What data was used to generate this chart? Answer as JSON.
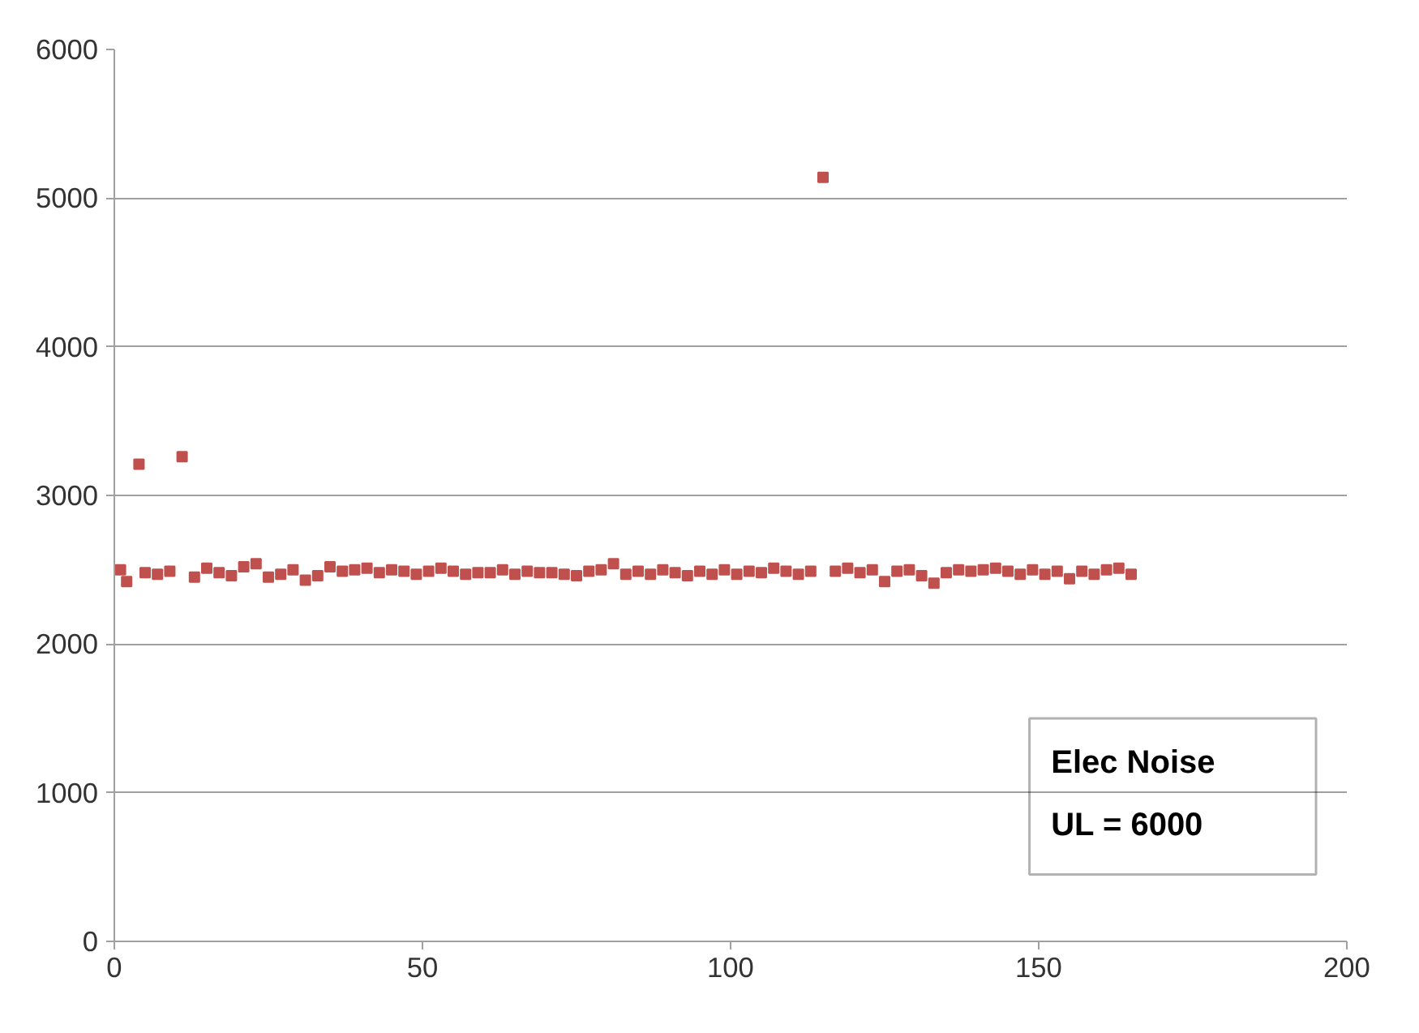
{
  "chart_data": {
    "type": "scatter",
    "marker": "square",
    "grid": "y",
    "xlim": [
      0,
      200
    ],
    "xticks": [
      0,
      50,
      100,
      150,
      200
    ],
    "ylim": [
      0,
      6000
    ],
    "yticks": [
      0,
      1000,
      2000,
      3000,
      4000,
      5000,
      6000
    ],
    "annotations": [
      "Elec Noise",
      "UL = 6000"
    ],
    "series": [
      {
        "color": "#c0504d",
        "x": [
          1,
          2,
          4,
          5,
          7,
          9,
          11,
          13,
          15,
          17,
          19,
          21,
          23,
          25,
          27,
          29,
          31,
          33,
          35,
          37,
          39,
          41,
          43,
          45,
          47,
          49,
          51,
          53,
          55,
          57,
          59,
          61,
          63,
          65,
          67,
          69,
          71,
          73,
          75,
          77,
          79,
          81,
          83,
          85,
          87,
          89,
          91,
          93,
          95,
          97,
          99,
          101,
          103,
          105,
          107,
          109,
          111,
          113,
          115,
          117,
          119,
          121,
          123,
          125,
          127,
          129,
          131,
          133,
          135,
          137,
          139,
          141,
          143,
          145,
          147,
          149,
          151,
          153,
          155,
          157,
          159,
          161,
          163,
          165
        ],
        "values": [
          2500,
          2420,
          3210,
          2480,
          2470,
          2490,
          3260,
          2450,
          2510,
          2480,
          2460,
          2520,
          2540,
          2450,
          2470,
          2500,
          2430,
          2460,
          2520,
          2490,
          2500,
          2510,
          2480,
          2500,
          2490,
          2470,
          2490,
          2510,
          2490,
          2470,
          2480,
          2480,
          2500,
          2470,
          2490,
          2480,
          2480,
          2470,
          2460,
          2490,
          2500,
          2540,
          2470,
          2490,
          2470,
          2500,
          2480,
          2460,
          2490,
          2470,
          2500,
          2470,
          2490,
          2480,
          2510,
          2490,
          2470,
          2490,
          5140,
          2490,
          2510,
          2480,
          2500,
          2420,
          2490,
          2500,
          2460,
          2410,
          2480,
          2500,
          2490,
          2500,
          2510,
          2490,
          2470,
          2500,
          2470,
          2490,
          2440,
          2490,
          2470,
          2500,
          2510,
          2470
        ]
      }
    ]
  }
}
